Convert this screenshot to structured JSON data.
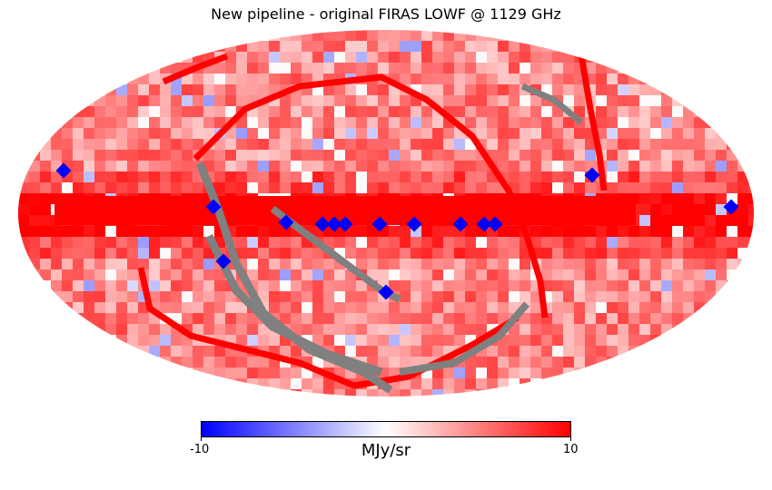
{
  "title": "New pipeline - original FIRAS LOWF @ 1129 GHz",
  "projection": "mollweide",
  "colorbar": {
    "min_label": "-10",
    "max_label": "10",
    "min": -10,
    "max": 10,
    "unit": "MJy/sr",
    "cmap": "bwr",
    "color_min": "#0000ff",
    "color_mid": "#ffffff",
    "color_max": "#ff0000"
  },
  "colors": {
    "masked": "#808080",
    "saturated_low": "#0000ff",
    "saturated_high": "#ff0000"
  }
}
